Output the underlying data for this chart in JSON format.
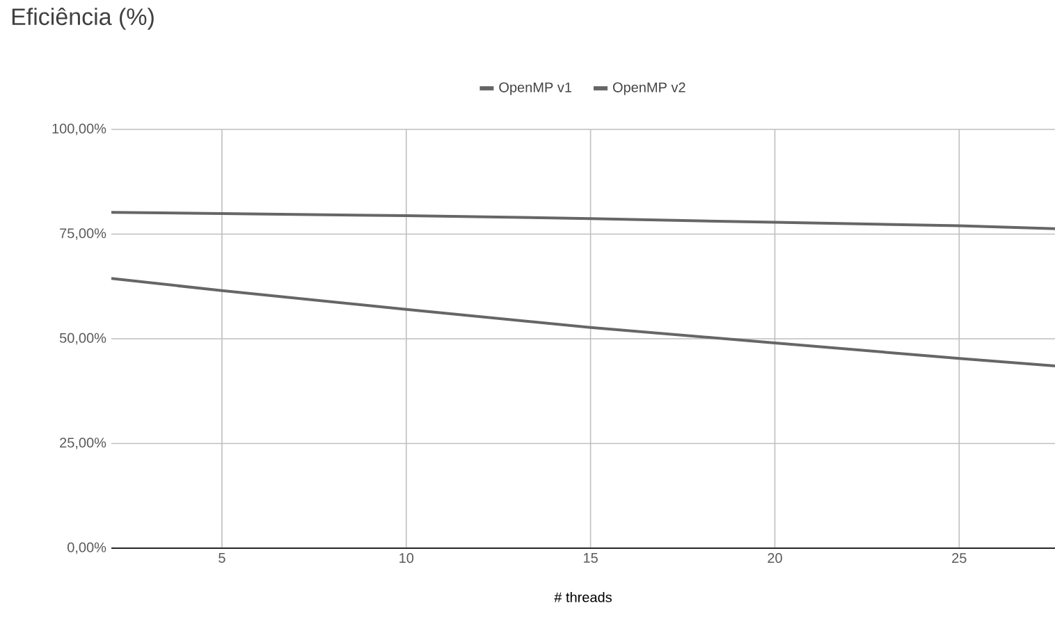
{
  "chart_data": {
    "type": "line",
    "title": "Eficiência (%)",
    "xlabel": "# threads",
    "x": [
      2,
      5,
      10,
      15,
      20,
      25,
      27.6
    ],
    "series": [
      {
        "name": "OpenMP v1",
        "color": "#666666",
        "values": [
          64.4,
          61.5,
          57.0,
          52.7,
          49.0,
          45.3,
          43.5
        ]
      },
      {
        "name": "OpenMP v2",
        "color": "#666666",
        "values": [
          80.2,
          79.9,
          79.4,
          78.7,
          77.8,
          77.0,
          76.3
        ]
      }
    ],
    "xlim": [
      2,
      27.6
    ],
    "xticks": [
      5,
      10,
      15,
      20,
      25
    ],
    "ylim": [
      0,
      100
    ],
    "yticks": [
      {
        "value": 0,
        "label": "0,00%"
      },
      {
        "value": 25,
        "label": "25,00%"
      },
      {
        "value": 50,
        "label": "50,00%"
      },
      {
        "value": 75,
        "label": "75,00%"
      },
      {
        "value": 100,
        "label": "100,00%"
      }
    ],
    "grid": true,
    "legend": "top",
    "marker": "none",
    "line_style": "solid"
  }
}
